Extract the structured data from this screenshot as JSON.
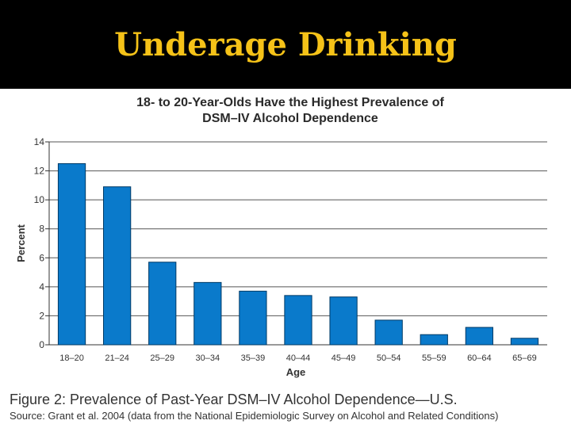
{
  "slide": {
    "title": "Underage Drinking"
  },
  "colors": {
    "bar": "#0a7acb",
    "title": "#f5c218",
    "grid": "#555555"
  },
  "chart_data": {
    "type": "bar",
    "title": "18- to 20-Year-Olds Have the Highest Prevalence of",
    "subtitle": "DSM–IV Alcohol Dependence",
    "xlabel": "Age",
    "ylabel": "Percent",
    "ylim": [
      0,
      14
    ],
    "yticks": [
      0,
      2,
      4,
      6,
      8,
      10,
      12,
      14
    ],
    "grid": true,
    "categories": [
      "18–20",
      "21–24",
      "25–29",
      "30–34",
      "35–39",
      "40–44",
      "45–49",
      "50–54",
      "55–59",
      "60–64",
      "65–69"
    ],
    "values": [
      12.5,
      10.9,
      5.7,
      4.3,
      3.7,
      3.4,
      3.3,
      1.7,
      0.7,
      1.2,
      0.45
    ]
  },
  "caption": "Figure 2: Prevalence of Past-Year DSM–IV Alcohol Dependence—U.S.",
  "source": "Source: Grant et al. 2004 (data from the National Epidemiologic Survey on Alcohol and Related Conditions)"
}
